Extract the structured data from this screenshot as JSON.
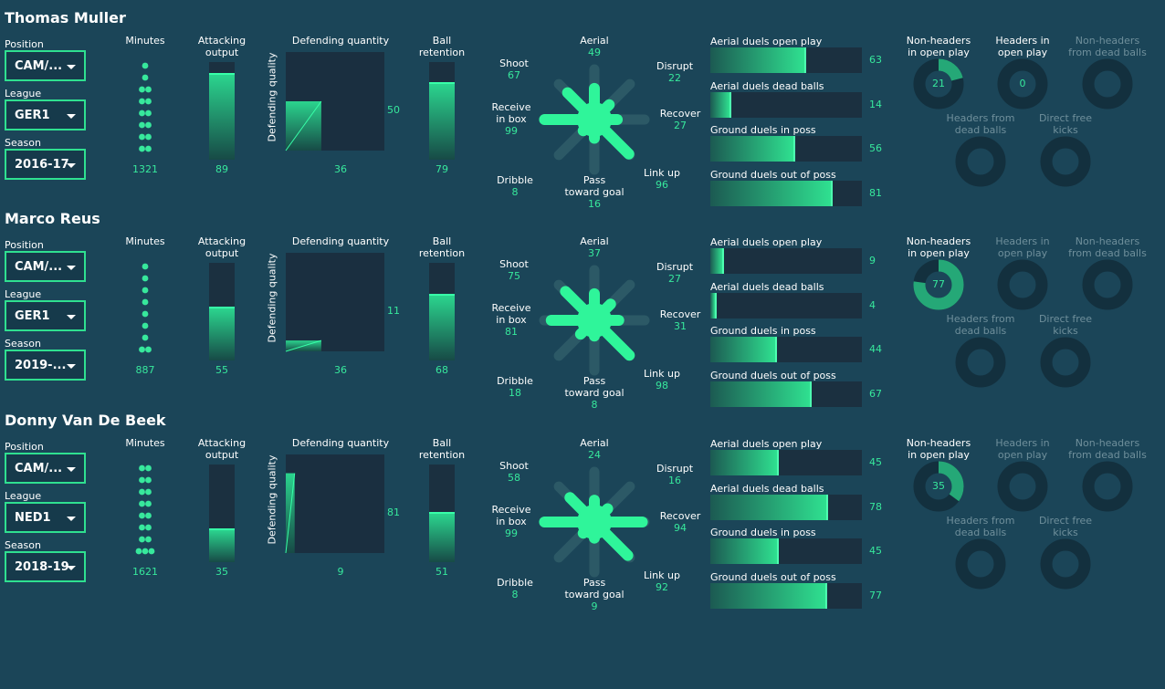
{
  "labels": {
    "position": "Position",
    "league": "League",
    "season": "Season",
    "minutes": "Minutes",
    "attacking": [
      "Attacking",
      "output"
    ],
    "defending_quantity": "Defending quantity",
    "defending_quality": "Defending quality",
    "ball_retention": [
      "Ball",
      "retention"
    ],
    "aerial": "Aerial",
    "shoot": "Shoot",
    "disrupt": "Disrupt",
    "receive": [
      "Receive",
      "in box"
    ],
    "recover": "Recover",
    "dribble": "Dribble",
    "pass": [
      "Pass",
      "toward goal"
    ],
    "link_up": "Link up",
    "duels": [
      "Aerial duels open play",
      "Aerial duels dead balls",
      "Ground duels in poss",
      "Ground duels out of poss"
    ],
    "donuts": [
      [
        "Non-headers",
        "in open play"
      ],
      [
        "Headers in",
        "open play"
      ],
      [
        "Non-headers",
        "from dead balls"
      ],
      [
        "Headers from",
        "dead balls"
      ],
      [
        "Direct free",
        "kicks"
      ]
    ]
  },
  "colors": {
    "accent": "#2fe090",
    "background": "#1b4558",
    "panel": "#1b3040",
    "text_value": "#37e89c"
  },
  "players": [
    {
      "name": "Thomas Muller",
      "position": "CAM/...",
      "league": "GER1",
      "season": "2016-17",
      "minutes": "1321",
      "minutes_dots": [
        1,
        1,
        2,
        2,
        2,
        2,
        2,
        2
      ],
      "attacking_output": "89",
      "defending_quantity": "36",
      "defending_quality": "50",
      "ball_retention": "79",
      "radar": {
        "aerial": "49",
        "shoot": "67",
        "disrupt": "22",
        "receive": "99",
        "recover": "27",
        "dribble": "8",
        "pass": "16",
        "link_up": "96"
      },
      "duels": [
        "63",
        "14",
        "56",
        "81"
      ],
      "donuts": [
        {
          "value": "21",
          "fraction": 0.21,
          "active": true
        },
        {
          "value": "0",
          "fraction": 0,
          "active": true
        },
        {
          "value": "",
          "fraction": 0,
          "active": false
        },
        {
          "value": "",
          "fraction": 0,
          "active": false
        },
        {
          "value": "",
          "fraction": 0,
          "active": false
        }
      ]
    },
    {
      "name": "Marco Reus",
      "position": "CAM/...",
      "league": "GER1",
      "season": "2019-...",
      "minutes": "887",
      "minutes_dots": [
        1,
        1,
        1,
        1,
        1,
        1,
        1,
        2
      ],
      "attacking_output": "55",
      "defending_quantity": "36",
      "defending_quality": "11",
      "ball_retention": "68",
      "radar": {
        "aerial": "37",
        "shoot": "75",
        "disrupt": "27",
        "receive": "81",
        "recover": "31",
        "dribble": "18",
        "pass": "8",
        "link_up": "98"
      },
      "duels": [
        "9",
        "4",
        "44",
        "67"
      ],
      "donuts": [
        {
          "value": "77",
          "fraction": 0.77,
          "active": true
        },
        {
          "value": "",
          "fraction": 0,
          "active": false
        },
        {
          "value": "",
          "fraction": 0,
          "active": false
        },
        {
          "value": "",
          "fraction": 0,
          "active": false
        },
        {
          "value": "",
          "fraction": 0,
          "active": false
        }
      ]
    },
    {
      "name": "Donny Van De Beek",
      "position": "CAM/...",
      "league": "NED1",
      "season": "2018-19",
      "minutes": "1621",
      "minutes_dots": [
        2,
        2,
        2,
        2,
        2,
        2,
        2,
        3
      ],
      "attacking_output": "35",
      "defending_quantity": "9",
      "defending_quality": "81",
      "ball_retention": "51",
      "radar": {
        "aerial": "24",
        "shoot": "58",
        "disrupt": "16",
        "receive": "99",
        "recover": "94",
        "dribble": "8",
        "pass": "9",
        "link_up": "92"
      },
      "duels": [
        "45",
        "78",
        "45",
        "77"
      ],
      "donuts": [
        {
          "value": "35",
          "fraction": 0.35,
          "active": true
        },
        {
          "value": "",
          "fraction": 0,
          "active": false
        },
        {
          "value": "",
          "fraction": 0,
          "active": false
        },
        {
          "value": "",
          "fraction": 0,
          "active": false
        },
        {
          "value": "",
          "fraction": 0,
          "active": false
        }
      ]
    }
  ]
}
